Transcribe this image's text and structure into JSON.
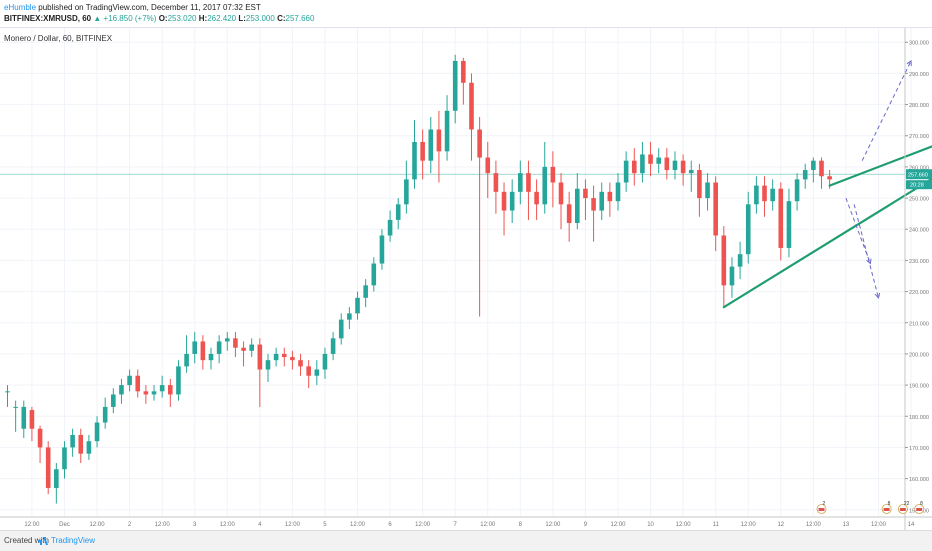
{
  "header": {
    "author": "eHumble",
    "published_text": " published on TradingView.com, December 11, 2017 07:32 EST",
    "symbol": "BITFINEX:XMRUSD, 60",
    "change_arrow": "▲",
    "change": "+16.850 (+7%)",
    "o_label": "O:",
    "o_value": "253.020",
    "h_label": "H:",
    "h_value": "262.420",
    "l_label": "L:",
    "l_value": "253.000",
    "c_label": "C:",
    "c_value": "257.660"
  },
  "legend": {
    "title": "Monero / Dollar, 60, BITFINEX"
  },
  "footer": {
    "created": "Created with",
    "brand": "TradingView"
  },
  "colors": {
    "up": "#26a69a",
    "down": "#ef5350",
    "trend": "#1e9e6e",
    "dashed": "#6b68c9",
    "grid": "#f0f3fa",
    "axis": "#777777",
    "price_line": "#26a69a"
  },
  "chart_data": {
    "type": "candlestick",
    "ylim": [
      148,
      302
    ],
    "y_ticks": [
      "150.000",
      "160.000",
      "170.000",
      "180.000",
      "190.000",
      "200.000",
      "210.000",
      "220.000",
      "230.000",
      "240.000",
      "250.000",
      "260.000",
      "270.000",
      "280.000",
      "290.000",
      "300.000"
    ],
    "x_ticks": [
      {
        "i": 3,
        "label": "12:00"
      },
      {
        "i": 7,
        "label": "Dec"
      },
      {
        "i": 11,
        "label": "12:00"
      },
      {
        "i": 15,
        "label": "2"
      },
      {
        "i": 19,
        "label": "12:00"
      },
      {
        "i": 23,
        "label": "3"
      },
      {
        "i": 27,
        "label": "12:00"
      },
      {
        "i": 31,
        "label": "4"
      },
      {
        "i": 35,
        "label": "12:00"
      },
      {
        "i": 39,
        "label": "5"
      },
      {
        "i": 43,
        "label": "12:00"
      },
      {
        "i": 47,
        "label": "6"
      },
      {
        "i": 51,
        "label": "12:00"
      },
      {
        "i": 55,
        "label": "7"
      },
      {
        "i": 59,
        "label": "12:00"
      },
      {
        "i": 63,
        "label": "8"
      },
      {
        "i": 67,
        "label": "12:00"
      },
      {
        "i": 71,
        "label": "9"
      },
      {
        "i": 75,
        "label": "12:00"
      },
      {
        "i": 79,
        "label": "10"
      },
      {
        "i": 83,
        "label": "12:00"
      },
      {
        "i": 87,
        "label": "11"
      },
      {
        "i": 91,
        "label": "12:00"
      },
      {
        "i": 95,
        "label": "12"
      },
      {
        "i": 99,
        "label": "12:00"
      },
      {
        "i": 103,
        "label": "13"
      },
      {
        "i": 107,
        "label": "12:00"
      },
      {
        "i": 111,
        "label": "14"
      }
    ],
    "last_price": 257.66,
    "last_price_label": "257.660",
    "secondary_label": "20:28",
    "candles": [
      [
        188,
        188,
        183,
        190
      ],
      [
        183,
        183,
        175,
        185
      ],
      [
        176,
        183,
        173,
        185
      ],
      [
        182,
        176,
        172,
        183
      ],
      [
        176,
        170,
        165,
        177
      ],
      [
        170,
        157,
        155,
        172
      ],
      [
        157,
        163,
        152,
        165
      ],
      [
        163,
        170,
        160,
        172
      ],
      [
        170,
        174,
        167,
        176
      ],
      [
        174,
        168,
        165,
        176
      ],
      [
        168,
        172,
        166,
        174
      ],
      [
        172,
        178,
        170,
        180
      ],
      [
        178,
        183,
        176,
        186
      ],
      [
        183,
        187,
        181,
        189
      ],
      [
        187,
        190,
        184,
        192
      ],
      [
        190,
        193,
        188,
        195
      ],
      [
        193,
        188,
        186,
        195
      ],
      [
        188,
        187,
        184,
        190
      ],
      [
        187,
        188,
        185,
        190
      ],
      [
        188,
        190,
        186,
        193
      ],
      [
        190,
        187,
        183,
        192
      ],
      [
        187,
        196,
        185,
        198
      ],
      [
        196,
        200,
        194,
        206
      ],
      [
        200,
        204,
        197,
        207
      ],
      [
        204,
        198,
        195,
        206
      ],
      [
        198,
        200,
        195,
        202
      ],
      [
        200,
        204,
        197,
        206
      ],
      [
        204,
        205,
        201,
        207
      ],
      [
        205,
        202,
        199,
        207
      ],
      [
        202,
        201,
        196,
        204
      ],
      [
        201,
        203,
        199,
        205
      ],
      [
        203,
        195,
        183,
        205
      ],
      [
        195,
        198,
        191,
        200
      ],
      [
        198,
        200,
        196,
        202
      ],
      [
        200,
        199,
        196,
        202
      ],
      [
        199,
        198,
        195,
        201
      ],
      [
        198,
        196,
        193,
        200
      ],
      [
        196,
        193,
        189,
        198
      ],
      [
        193,
        195,
        190,
        198
      ],
      [
        195,
        200,
        192,
        202
      ],
      [
        200,
        205,
        198,
        207
      ],
      [
        205,
        211,
        203,
        213
      ],
      [
        211,
        213,
        208,
        215
      ],
      [
        213,
        218,
        211,
        220
      ],
      [
        218,
        222,
        215,
        224
      ],
      [
        222,
        229,
        220,
        231
      ],
      [
        229,
        238,
        227,
        240
      ],
      [
        238,
        243,
        236,
        246
      ],
      [
        243,
        248,
        240,
        250
      ],
      [
        248,
        256,
        245,
        262
      ],
      [
        256,
        268,
        253,
        275
      ],
      [
        268,
        262,
        256,
        272
      ],
      [
        262,
        272,
        258,
        276
      ],
      [
        272,
        265,
        255,
        278
      ],
      [
        265,
        278,
        262,
        283
      ],
      [
        278,
        294,
        274,
        296
      ],
      [
        294,
        287,
        280,
        295
      ],
      [
        287,
        272,
        262,
        290
      ],
      [
        272,
        263,
        212,
        276
      ],
      [
        263,
        258,
        250,
        268
      ],
      [
        258,
        252,
        245,
        262
      ],
      [
        252,
        246,
        238,
        255
      ],
      [
        246,
        252,
        242,
        256
      ],
      [
        252,
        258,
        248,
        262
      ],
      [
        258,
        252,
        243,
        262
      ],
      [
        252,
        248,
        243,
        256
      ],
      [
        248,
        260,
        245,
        268
      ],
      [
        260,
        255,
        247,
        265
      ],
      [
        255,
        248,
        240,
        258
      ],
      [
        248,
        242,
        236,
        252
      ],
      [
        242,
        253,
        240,
        258
      ],
      [
        253,
        250,
        243,
        256
      ],
      [
        250,
        246,
        236,
        254
      ],
      [
        246,
        252,
        243,
        255
      ],
      [
        252,
        249,
        244,
        255
      ],
      [
        249,
        255,
        246,
        258
      ],
      [
        255,
        262,
        252,
        265
      ],
      [
        262,
        258,
        254,
        266
      ],
      [
        258,
        264,
        255,
        268
      ],
      [
        264,
        261,
        257,
        268
      ],
      [
        261,
        263,
        258,
        266
      ],
      [
        263,
        259,
        256,
        266
      ],
      [
        259,
        262,
        256,
        265
      ],
      [
        262,
        258,
        254,
        264
      ],
      [
        258,
        259,
        252,
        262
      ],
      [
        259,
        250,
        244,
        261
      ],
      [
        250,
        255,
        246,
        258
      ],
      [
        255,
        238,
        233,
        257
      ],
      [
        238,
        222,
        215,
        241
      ],
      [
        222,
        228,
        218,
        231
      ],
      [
        228,
        232,
        224,
        236
      ],
      [
        232,
        248,
        229,
        252
      ],
      [
        248,
        254,
        245,
        257
      ],
      [
        254,
        249,
        244,
        257
      ],
      [
        249,
        253,
        246,
        256
      ],
      [
        253,
        234,
        230,
        255
      ],
      [
        234,
        249,
        231,
        253
      ],
      [
        249,
        256,
        246,
        258
      ],
      [
        256,
        259,
        253,
        261
      ],
      [
        259,
        262,
        255,
        263
      ],
      [
        262,
        257,
        253,
        263
      ],
      [
        257,
        256,
        253,
        259
      ]
    ],
    "candles_x_offset": 0,
    "trend_lines": [
      {
        "from": [
          88,
          215
        ],
        "to": [
          124,
          273
        ]
      },
      {
        "from": [
          101,
          254
        ],
        "to": [
          124,
          277
        ]
      }
    ],
    "dashed_arrows": [
      {
        "from": [
          105,
          262
        ],
        "to": [
          111,
          294
        ]
      },
      {
        "from": [
          103,
          250
        ],
        "to": [
          106,
          229
        ]
      },
      {
        "from": [
          104,
          248
        ],
        "to": [
          107,
          218
        ]
      }
    ],
    "event_markers": [
      {
        "i": 100,
        "label": "2"
      },
      {
        "i": 108,
        "label": "8"
      },
      {
        "i": 110,
        "label": "22"
      },
      {
        "i": 112,
        "label": "8"
      },
      {
        "i": 118,
        "label": "5"
      },
      {
        "i": 120,
        "label": "12"
      }
    ]
  }
}
